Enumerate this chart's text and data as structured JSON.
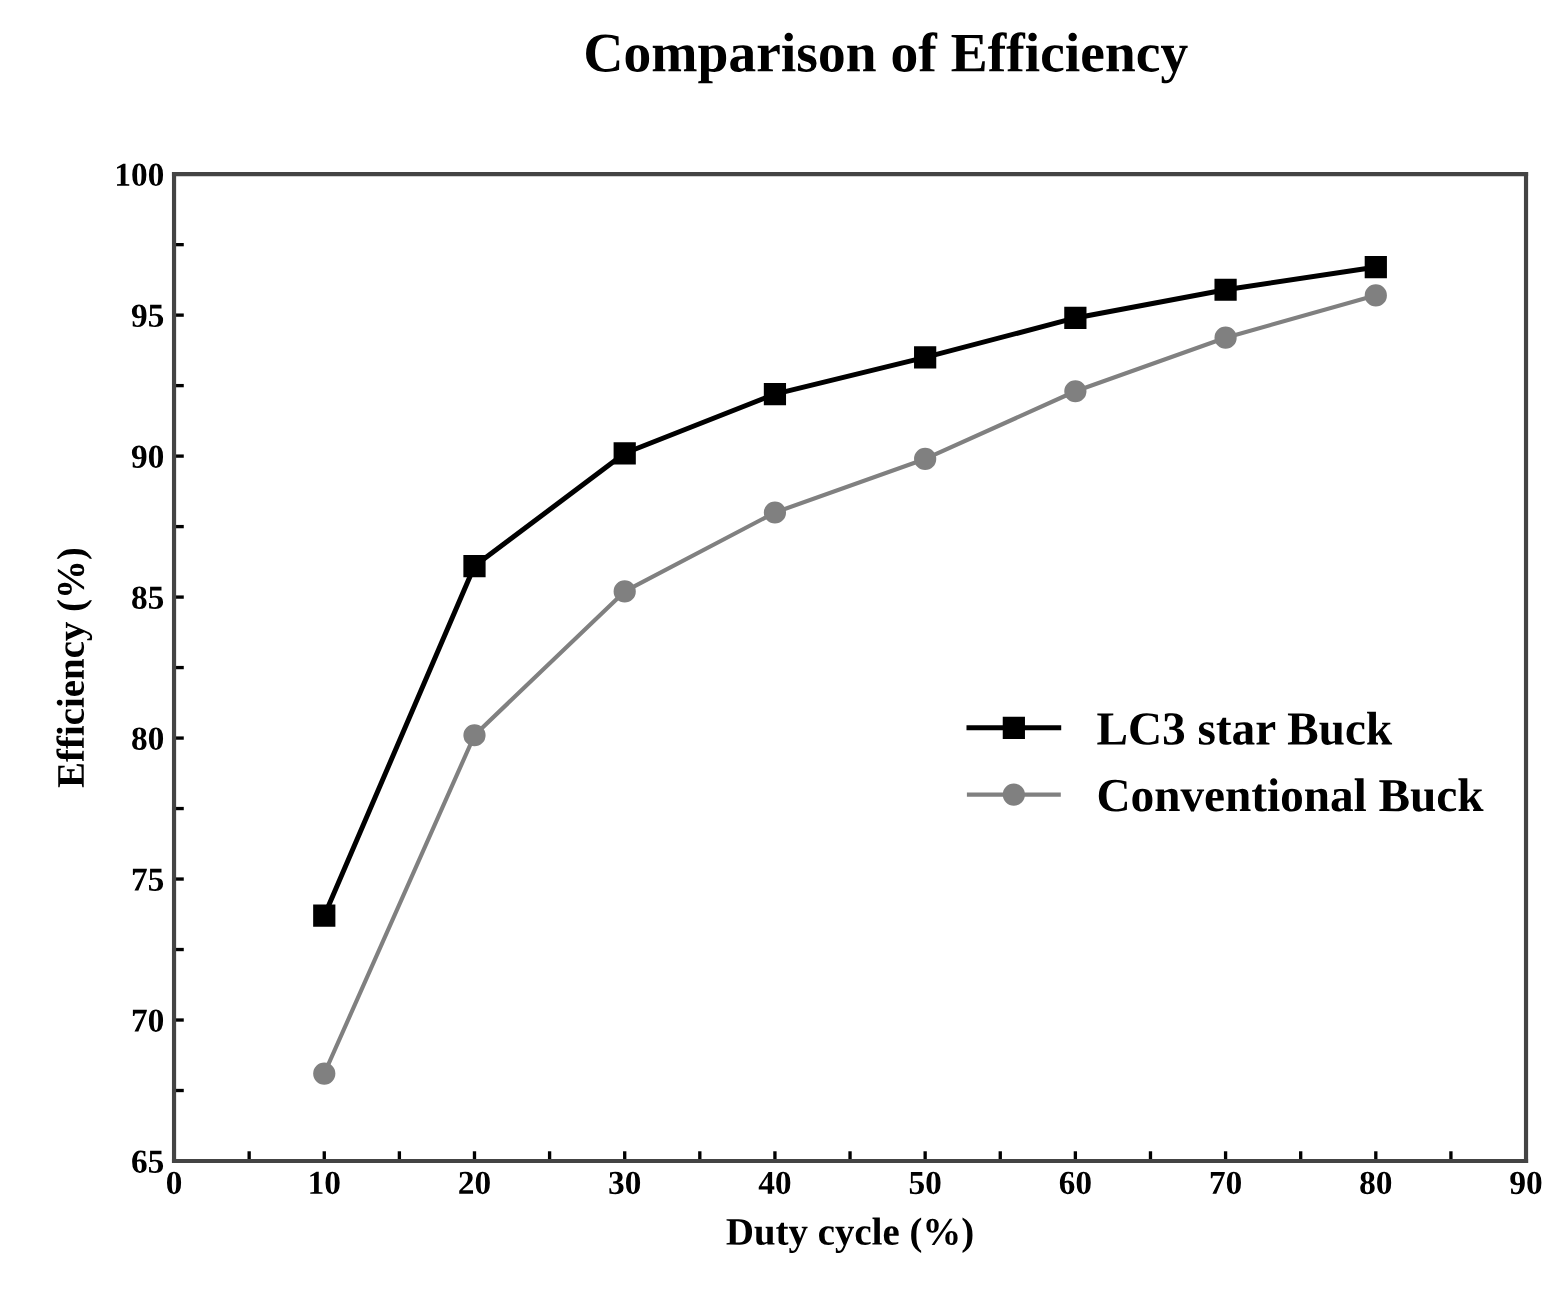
{
  "chart_data": {
    "type": "line",
    "title": "Comparison of Efficiency",
    "xlabel": "Duty cycle (%)",
    "ylabel": "Efficiency (%)",
    "x": [
      10,
      20,
      30,
      40,
      50,
      60,
      70,
      80
    ],
    "series": [
      {
        "name": "LC3 star Buck",
        "color": "#000000",
        "marker": "square",
        "values": [
          73.7,
          86.1,
          90.1,
          92.2,
          93.5,
          94.9,
          95.9,
          96.7
        ]
      },
      {
        "name": "Conventional Buck",
        "color": "#808080",
        "marker": "circle",
        "values": [
          68.1,
          80.1,
          85.2,
          88.0,
          89.9,
          92.3,
          94.2,
          95.7
        ]
      }
    ],
    "xlim": [
      0,
      90
    ],
    "xticks": [
      0,
      {
        "value": 5,
        "label": null
      },
      10,
      {
        "value": 15,
        "label": null
      },
      20,
      {
        "value": 25,
        "label": null
      },
      30,
      {
        "value": 35,
        "label": null
      },
      40,
      {
        "value": 45,
        "label": null
      },
      50,
      {
        "value": 55,
        "label": null
      },
      60,
      {
        "value": 65,
        "label": null
      },
      70,
      {
        "value": 75,
        "label": null
      },
      80,
      {
        "value": 85,
        "label": null
      },
      90
    ],
    "ylim": [
      65,
      100
    ],
    "yticks": [
      65,
      {
        "value": 67.5,
        "label": null
      },
      70,
      {
        "value": 72.5,
        "label": null
      },
      75,
      {
        "value": 77.5,
        "label": null
      },
      80,
      {
        "value": 82.5,
        "label": null
      },
      85,
      {
        "value": 87.5,
        "label": null
      },
      90,
      {
        "value": 92.5,
        "label": null
      },
      95,
      {
        "value": 97.5,
        "label": null
      },
      100
    ],
    "grid": false,
    "legend": "right",
    "line_style": "solid"
  }
}
